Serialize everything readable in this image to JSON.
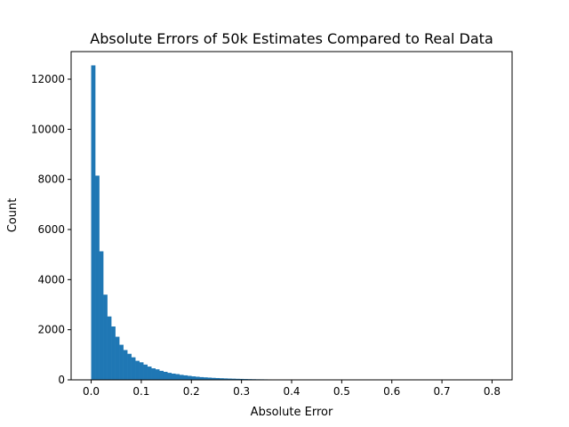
{
  "chart_data": {
    "type": "bar",
    "title": "Absolute Errors of 50k Estimates Compared to Real Data",
    "xlabel": "Absolute Error",
    "ylabel": "Count",
    "xlim": [
      -0.04,
      0.84
    ],
    "ylim": [
      0,
      13100
    ],
    "xticks": [
      0.0,
      0.1,
      0.2,
      0.3,
      0.4,
      0.5,
      0.6,
      0.7,
      0.8
    ],
    "xtick_labels": [
      "0.0",
      "0.1",
      "0.2",
      "0.3",
      "0.4",
      "0.5",
      "0.6",
      "0.7",
      "0.8"
    ],
    "yticks": [
      0,
      2000,
      4000,
      6000,
      8000,
      10000,
      12000
    ],
    "ytick_labels": [
      "0",
      "2000",
      "4000",
      "6000",
      "8000",
      "10000",
      "12000"
    ],
    "bin_start": 0.0,
    "bin_width": 0.008,
    "values": [
      12550,
      8150,
      5130,
      3400,
      2530,
      2130,
      1720,
      1400,
      1190,
      1040,
      900,
      760,
      700,
      610,
      530,
      460,
      420,
      360,
      320,
      280,
      250,
      230,
      200,
      180,
      160,
      140,
      125,
      110,
      100,
      90,
      80,
      72,
      65,
      58,
      52,
      47,
      42,
      38,
      34,
      30,
      27,
      24,
      22,
      20,
      18,
      16,
      14,
      13,
      12,
      11,
      10,
      9,
      8,
      8,
      7,
      6,
      6,
      5,
      5,
      4,
      4,
      4,
      3,
      3,
      3,
      2,
      2,
      2,
      2,
      2,
      1,
      1,
      1,
      1,
      1,
      1,
      1,
      1,
      1,
      1,
      1,
      1,
      1,
      1,
      1,
      1,
      1,
      1,
      1,
      1,
      1,
      1,
      1,
      1,
      1,
      1,
      1,
      1,
      1,
      1,
      1
    ],
    "bar_color": "#1f77b4",
    "grid": false
  }
}
